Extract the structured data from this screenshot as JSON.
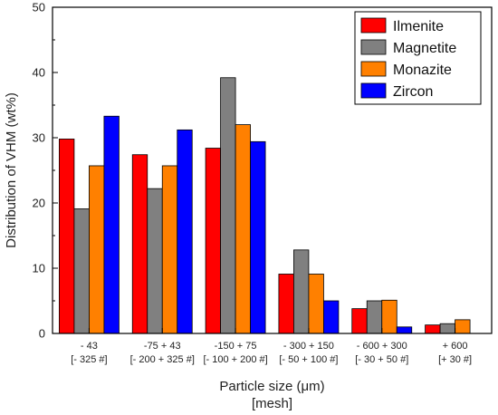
{
  "chart_data": {
    "type": "bar",
    "categories": [
      "- 43",
      "-75 + 43",
      "-150 + 75",
      "- 300 + 150",
      "- 600 + 300",
      "+ 600"
    ],
    "mesh_labels": [
      "[- 325 #]",
      "[- 200 + 325 #]",
      "[- 100 + 200 #]",
      "[- 50 + 100 #]",
      "[- 30 + 50 #]",
      "[+ 30 #]"
    ],
    "series": [
      {
        "name": "Ilmenite",
        "color": "#ff0000",
        "values": [
          29.8,
          27.4,
          28.4,
          9.1,
          3.8,
          1.3
        ]
      },
      {
        "name": "Magnetite",
        "color": "#808080",
        "values": [
          19.1,
          22.2,
          39.2,
          12.8,
          5.0,
          1.5
        ]
      },
      {
        "name": "Monazite",
        "color": "#ff8000",
        "values": [
          25.7,
          25.7,
          32.0,
          9.1,
          5.1,
          2.1
        ]
      },
      {
        "name": "Zircon",
        "color": "#0000ff",
        "values": [
          33.3,
          31.2,
          29.4,
          5.0,
          1.0,
          0.0
        ]
      }
    ],
    "xlabel": "Particle size (μm)",
    "xlabel2": "[mesh]",
    "ylabel": "Distribution of VHM (wt%)",
    "ylim": [
      0,
      50
    ],
    "yticks": [
      0,
      10,
      20,
      30,
      40,
      50
    ],
    "legend_position": "top-right",
    "grid": false
  }
}
